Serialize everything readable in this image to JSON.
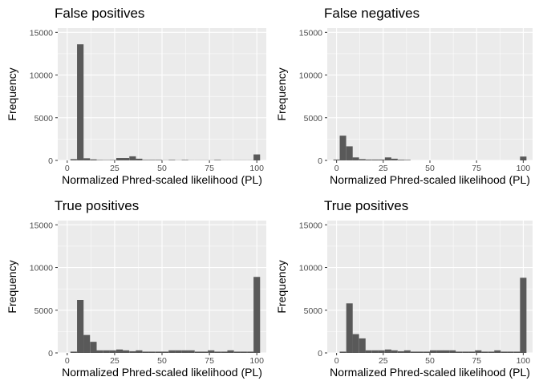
{
  "figure": {
    "xlabel": "Normalized Phred-scaled likelihood (PL)",
    "ylabel": "Frequency",
    "xticks": [
      "0",
      "25",
      "50",
      "75",
      "100"
    ],
    "yticks": [
      "0",
      "5000",
      "10000",
      "15000"
    ]
  },
  "colors": {
    "panel_bg": "#ebebeb",
    "grid": "#ffffff",
    "bar": "#595959",
    "text": "#000000",
    "tick_text": "#4d4d4d"
  },
  "chart_data": [
    {
      "type": "bar",
      "title": "False positives",
      "xlabel": "Normalized Phred-scaled likelihood (PL)",
      "ylabel": "Frequency",
      "xlim": [
        -5,
        105
      ],
      "ylim": [
        0,
        15500
      ],
      "bin_centers": [
        3.4,
        6.9,
        10.3,
        13.8,
        17.2,
        20.7,
        24.1,
        27.6,
        31.0,
        34.5,
        37.9,
        41.4,
        44.8,
        48.3,
        51.7,
        55.2,
        58.6,
        62.1,
        65.5,
        69.0,
        72.4,
        75.9,
        79.3,
        82.8,
        86.2,
        89.7,
        93.1,
        96.6,
        100.0
      ],
      "values": [
        150,
        13600,
        250,
        120,
        50,
        40,
        50,
        280,
        280,
        480,
        200,
        60,
        60,
        60,
        20,
        60,
        20,
        60,
        20,
        20,
        20,
        20,
        60,
        20,
        20,
        20,
        20,
        20,
        700
      ]
    },
    {
      "type": "bar",
      "title": "False negatives",
      "xlabel": "Normalized Phred-scaled likelihood (PL)",
      "ylabel": "Frequency",
      "xlim": [
        -5,
        105
      ],
      "ylim": [
        0,
        15500
      ],
      "bin_centers": [
        0.0,
        3.4,
        6.9,
        10.3,
        13.8,
        17.2,
        20.7,
        24.1,
        27.6,
        31.0,
        34.5,
        37.9,
        41.4,
        44.8,
        48.3,
        51.7,
        55.2,
        58.6,
        62.1,
        65.5,
        69.0,
        72.4,
        75.9,
        79.3,
        82.8,
        86.2,
        89.7,
        93.1,
        96.6,
        100.0
      ],
      "values": [
        100,
        2900,
        1650,
        350,
        150,
        100,
        100,
        100,
        350,
        200,
        80,
        60,
        0,
        0,
        0,
        0,
        0,
        0,
        0,
        0,
        0,
        0,
        0,
        0,
        0,
        0,
        0,
        0,
        0,
        450
      ]
    },
    {
      "type": "bar",
      "title": "True positives",
      "xlabel": "Normalized Phred-scaled likelihood (PL)",
      "ylabel": "Frequency",
      "xlim": [
        -5,
        105
      ],
      "ylim": [
        0,
        15500
      ],
      "bin_centers": [
        3.4,
        6.9,
        10.3,
        13.8,
        17.2,
        20.7,
        24.1,
        27.6,
        31.0,
        34.5,
        37.9,
        41.4,
        44.8,
        48.3,
        51.7,
        55.2,
        58.6,
        62.1,
        65.5,
        69.0,
        72.4,
        75.9,
        79.3,
        82.8,
        86.2,
        89.7,
        93.1,
        96.6,
        100.0
      ],
      "values": [
        150,
        6200,
        2100,
        1300,
        300,
        300,
        300,
        400,
        300,
        200,
        300,
        150,
        150,
        150,
        150,
        300,
        300,
        300,
        300,
        150,
        150,
        300,
        150,
        150,
        300,
        150,
        150,
        150,
        8900
      ]
    },
    {
      "type": "bar",
      "title": "True positives",
      "xlabel": "Normalized Phred-scaled likelihood (PL)",
      "ylabel": "Frequency",
      "xlim": [
        -5,
        105
      ],
      "ylim": [
        0,
        15500
      ],
      "bin_centers": [
        3.4,
        6.9,
        10.3,
        13.8,
        17.2,
        20.7,
        24.1,
        27.6,
        31.0,
        34.5,
        37.9,
        41.4,
        44.8,
        48.3,
        51.7,
        55.2,
        58.6,
        62.1,
        65.5,
        69.0,
        72.4,
        75.9,
        79.3,
        82.8,
        86.2,
        89.7,
        93.1,
        96.6,
        100.0
      ],
      "values": [
        150,
        5800,
        2200,
        1700,
        300,
        300,
        300,
        400,
        300,
        200,
        300,
        150,
        150,
        150,
        300,
        300,
        300,
        300,
        150,
        150,
        150,
        300,
        150,
        150,
        300,
        150,
        150,
        150,
        8800
      ]
    }
  ]
}
